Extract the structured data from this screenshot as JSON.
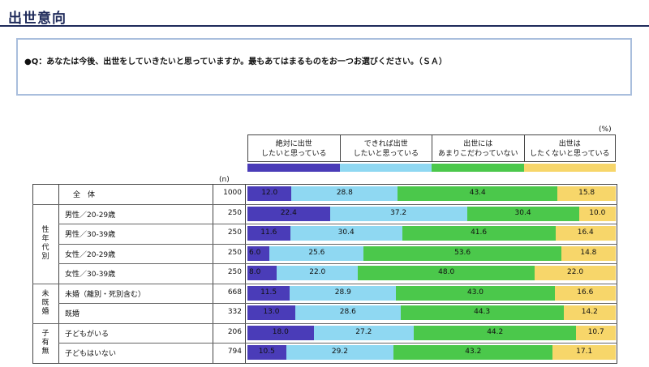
{
  "header": {
    "title": "出世意向",
    "question": "●Q：あなたは今後、出世をしていきたいと思っていますか。最もあてはまるものをお一つお選びください。（ＳＡ）"
  },
  "chart_data": {
    "type": "bar",
    "stacked": true,
    "orientation": "horizontal",
    "unit": "(%)",
    "n_header": "(n)",
    "series": [
      {
        "name": "絶対に出世\nしたいと思っている",
        "color": "#4a3cb8"
      },
      {
        "name": "できれば出世\nしたいと思っている",
        "color": "#8fd8f2"
      },
      {
        "name": "出世には\nあまりこだわっていない",
        "color": "#4bc84b"
      },
      {
        "name": "出世は\nしたくないと思っている",
        "color": "#f7d66a"
      }
    ],
    "groups": [
      {
        "label": "",
        "rows": [
          0
        ]
      },
      {
        "label": "性年代別",
        "rows": [
          1,
          2,
          3,
          4
        ]
      },
      {
        "label": "未既婚",
        "rows": [
          5,
          6
        ]
      },
      {
        "label": "子有無",
        "rows": [
          7,
          8
        ]
      }
    ],
    "rows": [
      {
        "label": "全　体",
        "n": "1000",
        "values": [
          12.0,
          28.8,
          43.4,
          15.8
        ]
      },
      {
        "label": "男性／20-29歳",
        "n": "250",
        "values": [
          22.4,
          37.2,
          30.4,
          10.0
        ]
      },
      {
        "label": "男性／30-39歳",
        "n": "250",
        "values": [
          11.6,
          30.4,
          41.6,
          16.4
        ]
      },
      {
        "label": "女性／20-29歳",
        "n": "250",
        "values": [
          6.0,
          25.6,
          53.6,
          14.8
        ]
      },
      {
        "label": "女性／30-39歳",
        "n": "250",
        "values": [
          8.0,
          22.0,
          48.0,
          22.0
        ]
      },
      {
        "label": "未婚（離別・死別含む）",
        "n": "668",
        "values": [
          11.5,
          28.9,
          43.0,
          16.6
        ]
      },
      {
        "label": "既婚",
        "n": "332",
        "values": [
          13.0,
          28.6,
          44.3,
          14.2
        ]
      },
      {
        "label": "子どもがいる",
        "n": "206",
        "values": [
          18.0,
          27.2,
          44.2,
          10.7
        ]
      },
      {
        "label": "子どもはいない",
        "n": "794",
        "values": [
          10.5,
          29.2,
          43.2,
          17.1
        ]
      }
    ]
  }
}
